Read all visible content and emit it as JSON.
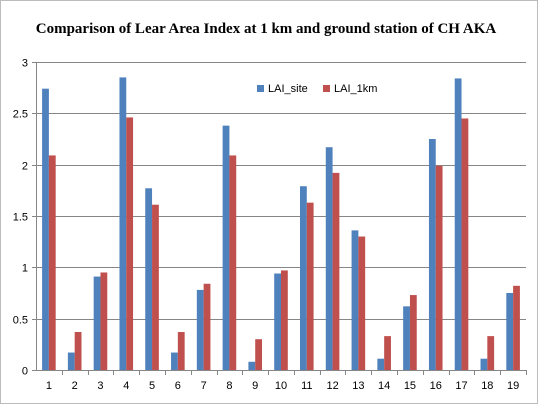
{
  "chart_data": {
    "type": "bar",
    "title": "Comparison of Lear Area Index at 1 km and ground station of CH AKA",
    "categories": [
      "1",
      "2",
      "3",
      "4",
      "5",
      "6",
      "7",
      "8",
      "9",
      "10",
      "11",
      "12",
      "13",
      "14",
      "15",
      "16",
      "17",
      "18",
      "19"
    ],
    "series": [
      {
        "name": "LAI_site",
        "color": "#4f81bd",
        "values": [
          2.74,
          0.17,
          0.91,
          2.85,
          1.77,
          0.17,
          0.78,
          2.38,
          0.08,
          0.94,
          1.79,
          2.17,
          1.36,
          0.11,
          0.62,
          2.25,
          2.84,
          0.11,
          0.75
        ]
      },
      {
        "name": "LAI_1km",
        "color": "#c0504d",
        "values": [
          2.09,
          0.37,
          0.95,
          2.46,
          1.61,
          0.37,
          0.84,
          2.09,
          0.3,
          0.97,
          1.63,
          1.92,
          1.3,
          0.33,
          0.73,
          1.99,
          2.45,
          0.33,
          0.82
        ]
      }
    ],
    "ylim": [
      0,
      3
    ],
    "yticks": [
      0,
      0.5,
      1,
      1.5,
      2,
      2.5,
      3
    ],
    "ytick_labels": [
      "0",
      "0.5",
      "1",
      "1.5",
      "2",
      "2.5",
      "3"
    ],
    "grid": true,
    "legend_position": "top-right"
  }
}
